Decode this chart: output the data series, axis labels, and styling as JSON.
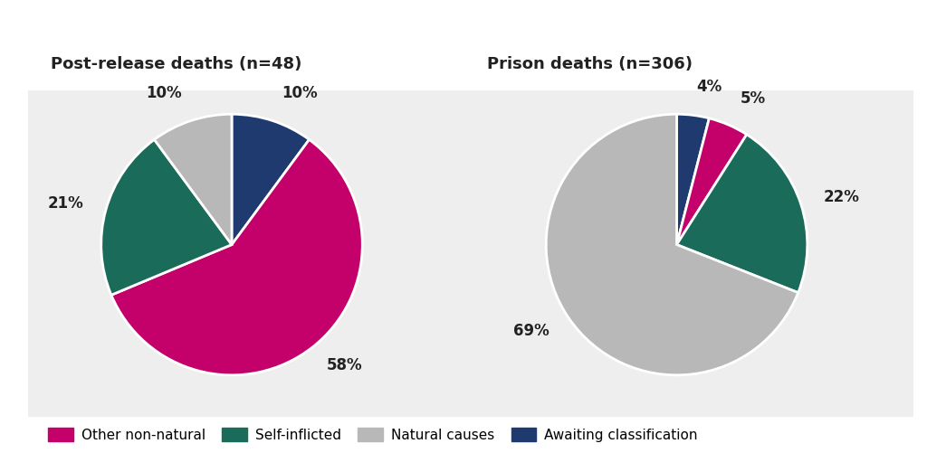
{
  "chart1_title": "Post-release deaths (n=48)",
  "chart2_title": "Prison deaths (n=306)",
  "colors": [
    "#c4006a",
    "#1a6b5a",
    "#b8b8b8",
    "#1e3a6e"
  ],
  "prd_values": [
    58,
    21,
    10,
    10
  ],
  "prison_values": [
    5,
    22,
    69,
    4
  ],
  "prd_labels": [
    "58%",
    "21%",
    "10%",
    "10%"
  ],
  "prison_labels": [
    "5%",
    "22%",
    "69%",
    "4%"
  ],
  "panel_bg": "#eeeeee",
  "outer_bg": "#ffffff",
  "legend_labels": [
    "Other non-natural",
    "Self-inflicted",
    "Natural causes",
    "Awaiting classification"
  ],
  "title_fontsize": 13,
  "label_fontsize": 12,
  "legend_fontsize": 11
}
